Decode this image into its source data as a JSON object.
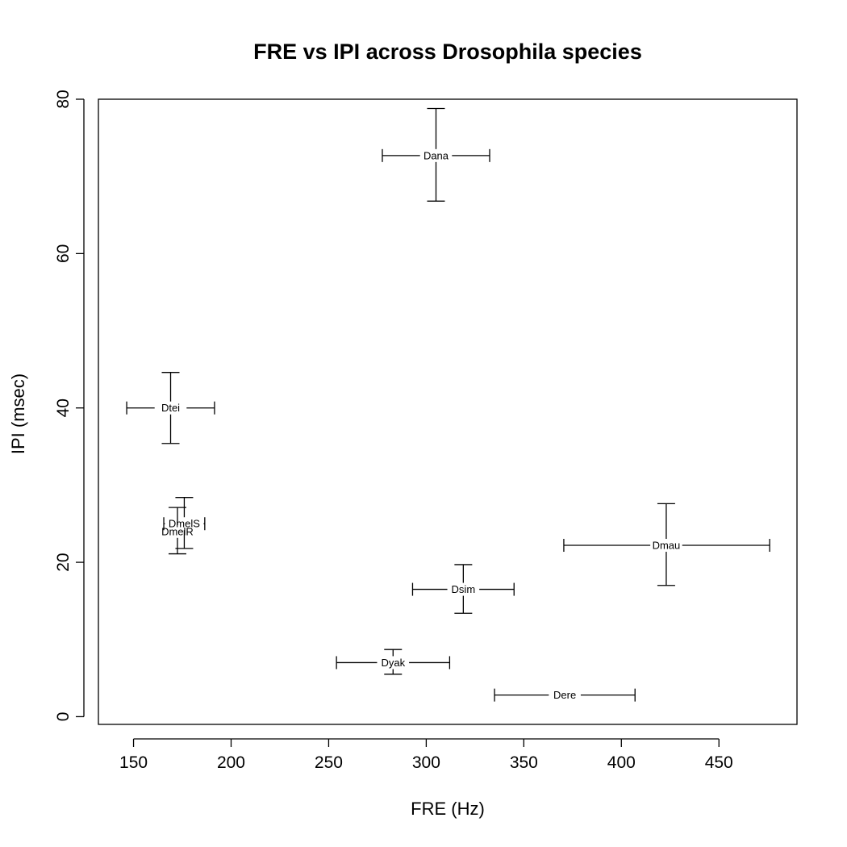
{
  "chart_data": {
    "type": "scatter",
    "title": "FRE vs IPI across Drosophila species",
    "xlabel": "FRE (Hz)",
    "ylabel": "IPI (msec)",
    "xlim": [
      132,
      490
    ],
    "ylim": [
      -1,
      80
    ],
    "x_ticks": [
      150,
      200,
      250,
      300,
      350,
      400,
      450
    ],
    "y_ticks": [
      0,
      20,
      40,
      60,
      80
    ],
    "grid": false,
    "legend": "none",
    "marker": "text-label-with-crosshair-error-bars",
    "series": [
      {
        "points": [
          {
            "label": "Dana",
            "x": 305,
            "y": 72.7,
            "x_lo": 277.5,
            "x_hi": 332.5,
            "y_lo": 66.8,
            "y_hi": 78.8
          },
          {
            "label": "Dtei",
            "x": 169,
            "y": 40.0,
            "x_lo": 146.5,
            "x_hi": 191.5,
            "y_lo": 35.4,
            "y_hi": 44.6
          },
          {
            "label": "DmelS",
            "x": 176,
            "y": 25.0,
            "x_lo": 165.5,
            "x_hi": 186.5,
            "y_lo": 21.8,
            "y_hi": 28.4
          },
          {
            "label": "DmelR",
            "x": 172.5,
            "y": 24.0,
            "x_lo": 172,
            "x_hi": 173,
            "y_lo": 21.1,
            "y_hi": 27.1
          },
          {
            "label": "Dmau",
            "x": 423,
            "y": 22.2,
            "x_lo": 370.5,
            "x_hi": 476,
            "y_lo": 17.0,
            "y_hi": 27.6
          },
          {
            "label": "Dsim",
            "x": 319,
            "y": 16.5,
            "x_lo": 293,
            "x_hi": 345,
            "y_lo": 13.4,
            "y_hi": 19.7
          },
          {
            "label": "Dyak",
            "x": 283,
            "y": 7.0,
            "x_lo": 254,
            "x_hi": 312,
            "y_lo": 5.5,
            "y_hi": 8.7
          },
          {
            "label": "Dere",
            "x": 371,
            "y": 2.8,
            "x_lo": 335,
            "x_hi": 407,
            "y_lo": 2.8,
            "y_hi": 2.8
          }
        ]
      }
    ]
  }
}
